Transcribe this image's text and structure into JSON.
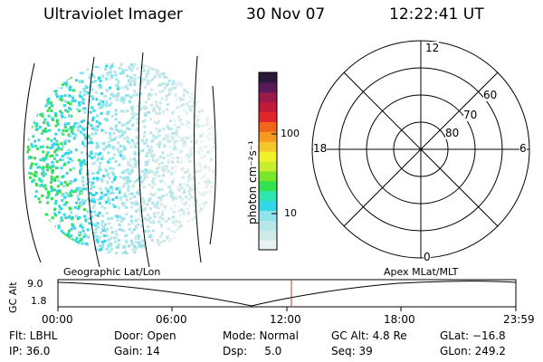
{
  "header": {
    "instrument": "Ultraviolet Imager",
    "date": "30 Nov 07",
    "time": "12:22:41 UT"
  },
  "colorbar": {
    "unit": "photon cm⁻²s⁻¹",
    "ticks": [
      "100",
      "10"
    ],
    "colors": [
      "#e6f2f2",
      "#cfe8e8",
      "#b5e6ea",
      "#8fe3ea",
      "#33d6e6",
      "#2fe6b0",
      "#33e04d",
      "#7ae62e",
      "#c8ee2e",
      "#f2f22a",
      "#f5c62a",
      "#f59a1f",
      "#f0651a",
      "#e02626",
      "#c41a3a",
      "#9a1a4a",
      "#5a1a5a",
      "#2a1a3a"
    ]
  },
  "polar": {
    "clock_labels": [
      "12",
      "6",
      "18",
      "0"
    ],
    "ring_labels": [
      "80",
      "70",
      "60"
    ]
  },
  "ephemeris": {
    "left_title": "Geographic Lat/Lon",
    "right_title": "Apex MLat/MLT",
    "ylabel": "GC Alt",
    "yticks": [
      "9.0",
      "1.8"
    ],
    "xticks": [
      "00:00",
      "06:00",
      "12:00",
      "18:00",
      "23:59"
    ]
  },
  "status": {
    "flt": "Flt: LBHL",
    "ip": "IP: 36.0",
    "door": "Door: Open",
    "gain": "Gain: 14",
    "mode": "Mode: Normal",
    "dsp": "Dsp:     5.0",
    "gcalt": "GC Alt: 4.8 Re",
    "seq": "Seq: 39",
    "glat": "GLat: −16.8",
    "glon": "GLon: 249.2"
  },
  "colors": {
    "trace": "#000000",
    "marker": "#c0392b",
    "background": "#ffffff"
  }
}
